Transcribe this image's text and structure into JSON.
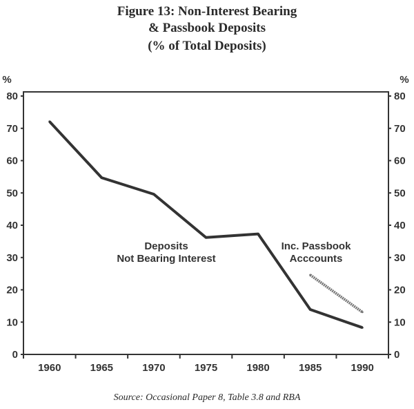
{
  "chart_data": {
    "type": "line",
    "title": [
      "Figure 13: Non-Interest Bearing",
      "& Passbook Deposits",
      "(% of Total Deposits)"
    ],
    "ylabel_left": "%",
    "ylabel_right": "%",
    "ylim": [
      0,
      80
    ],
    "yticks": [
      0,
      10,
      20,
      30,
      40,
      50,
      60,
      70,
      80
    ],
    "x": [
      1960,
      1965,
      1970,
      1975,
      1980,
      1985,
      1990
    ],
    "grid": false,
    "series": [
      {
        "name": "Deposits Not Bearing Interest",
        "label_lines": [
          "Deposits",
          "Not Bearing Interest"
        ],
        "x": [
          1960,
          1965,
          1970,
          1975,
          1980,
          1985,
          1990
        ],
        "values": [
          72.1,
          54.7,
          49.6,
          36.2,
          37.3,
          13.9,
          8.3
        ],
        "color": "#333333"
      },
      {
        "name": "Inc. Passbook Acccounts",
        "label_lines": [
          "Inc. Passbook",
          "Acccounts"
        ],
        "x": [
          1985,
          1990
        ],
        "values": [
          24.6,
          13.1
        ],
        "color": "#777777"
      }
    ],
    "source": "Source: Occasional Paper 8, Table 3.8 and RBA"
  }
}
